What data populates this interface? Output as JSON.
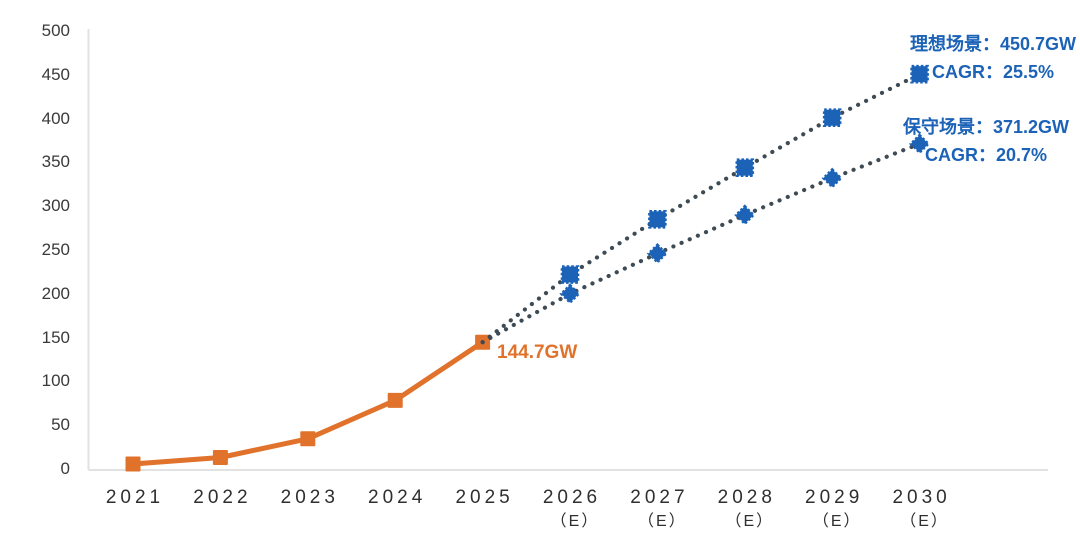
{
  "chart_data": {
    "type": "line",
    "title": "",
    "unit": "GW",
    "x_categories": [
      "2021",
      "2022",
      "2023",
      "2024",
      "2025",
      "2026",
      "2027",
      "2028",
      "2029",
      "2030"
    ],
    "x_sublabels": [
      "",
      "",
      "",
      "",
      "",
      "（E）",
      "（E）",
      "（E）",
      "（E）",
      "（E）"
    ],
    "yticks": [
      0,
      50,
      100,
      150,
      200,
      250,
      300,
      350,
      400,
      450,
      500
    ],
    "ylim": [
      0,
      500
    ],
    "grid": false,
    "legend": "none",
    "series": [
      {
        "id": "historical",
        "name": "2021-2025",
        "x": [
          "2021",
          "2022",
          "2023",
          "2024",
          "2025"
        ],
        "values": [
          5.7,
          13.1,
          34.5,
          78.3,
          144.7
        ],
        "line": "solid",
        "marker": "square",
        "color": "#e0722c"
      },
      {
        "id": "ideal",
        "name": "理想场景",
        "x": [
          "2025",
          "2026",
          "2027",
          "2028",
          "2029",
          "2030"
        ],
        "values": [
          144.7,
          222,
          285,
          344,
          401,
          450.7
        ],
        "line": "dotted",
        "dot_color": "#3e4b54",
        "marker": "square",
        "color": "#1c63b7",
        "skip_first_marker": true
      },
      {
        "id": "conservative",
        "name": "保守场景",
        "x": [
          "2025",
          "2026",
          "2027",
          "2028",
          "2029",
          "2030"
        ],
        "values": [
          144.7,
          200,
          246,
          290,
          332,
          371.2
        ],
        "line": "dotted",
        "dot_color": "#3e4b54",
        "marker": "diamond",
        "color": "#1c63b7",
        "skip_first_marker": true
      }
    ],
    "annotations": {
      "ideal": {
        "line1": "理想场景：450.7GW",
        "line2": "CAGR：25.5%"
      },
      "conservative": {
        "line1": "保守场景：371.2GW",
        "line2": "CAGR：20.7%"
      },
      "current": {
        "text": "144.7GW"
      }
    },
    "colors": {
      "historical_orange": "#e0722c",
      "projection_marker_blue": "#1c63b7",
      "projection_dot_gray": "#3e4b54",
      "axis_line": "#e2e2e2",
      "tick_text": "#3a3a3a"
    }
  }
}
